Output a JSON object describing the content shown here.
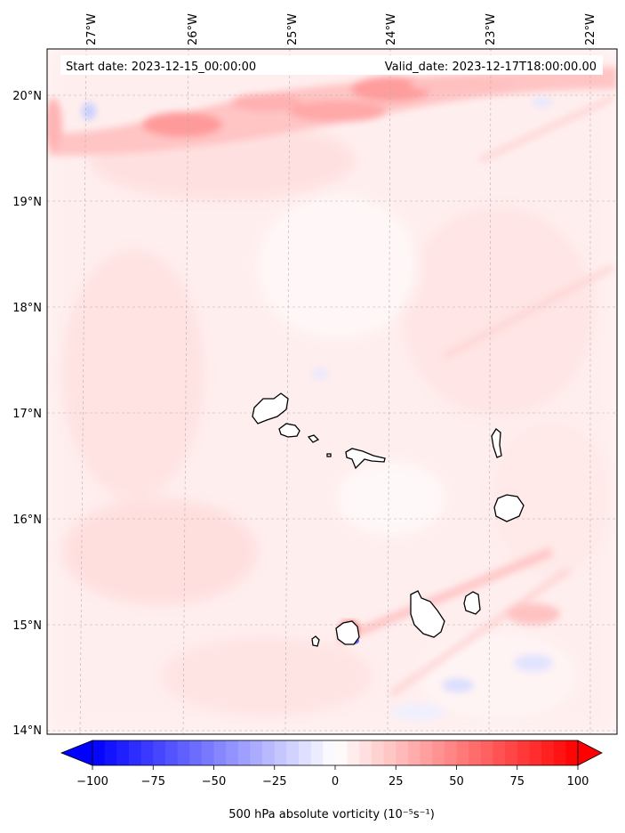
{
  "header": {
    "start_date": "Start date: 2023-12-15_00:00:00",
    "valid_date": "Valid_date: 2023-12-17T18:00:00.00"
  },
  "map": {
    "lon_ticks": [
      "27°W",
      "26°W",
      "25°W",
      "24°W",
      "23°W",
      "22°W"
    ],
    "lat_ticks": [
      "20°N",
      "19°N",
      "18°N",
      "17°N",
      "16°N",
      "15°N",
      "14°N"
    ]
  },
  "colorbar": {
    "tick_labels": [
      "−100",
      "−75",
      "−50",
      "−25",
      "0",
      "25",
      "50",
      "75",
      "100"
    ],
    "label": "500 hPa absolute vorticity (10⁻⁵s⁻¹)",
    "min_color": "#0000ff",
    "mid_color": "#ffffff",
    "max_color": "#ff0000"
  },
  "icons": {
    "land": "island-outline",
    "extend": "colorbar-extend-arrow"
  }
}
